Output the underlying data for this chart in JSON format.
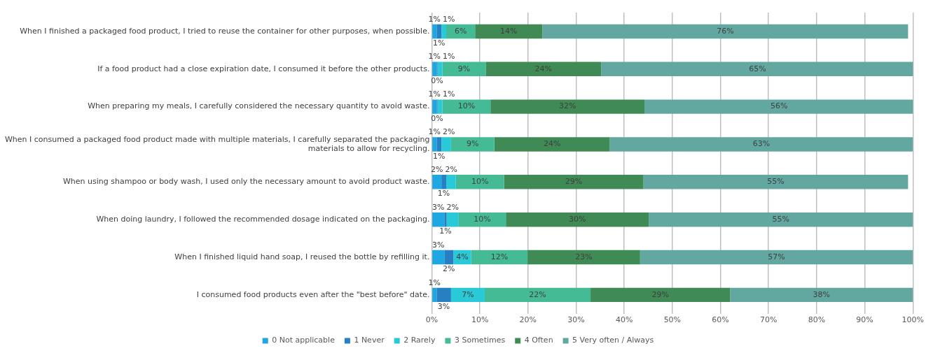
{
  "chart_data": {
    "type": "bar",
    "orientation": "horizontal",
    "stacked": true,
    "categories": [
      "When I finished a packaged food product, I tried to reuse the container for other purposes, when possible.",
      "If a food product had a close expiration date, I consumed it before the other products.",
      "When preparing my meals, I carefully considered the necessary quantity to avoid waste.",
      "When I consumed a packaged food product made with multiple materials, I carefully separated the packaging materials to allow for recycling.",
      "When using shampoo or body wash, I used only the necessary amount to avoid product waste.",
      "When doing laundry, I followed the recommended dosage indicated on the packaging.",
      "When I finished liquid hand soap, I reused the bottle by refilling it.",
      "I consumed food products even after the \"best before\" date."
    ],
    "series": [
      {
        "name": "0 Not applicable",
        "color": "#1ea7e0",
        "values": [
          1,
          1,
          1,
          1,
          2,
          2.6,
          2.6,
          1
        ],
        "value_labels": [
          "1%",
          "1%",
          "1%",
          "1%",
          "2%",
          "3%",
          "3%",
          "1%"
        ]
      },
      {
        "name": "1 Never",
        "color": "#2680c2",
        "values": [
          1,
          0.2,
          0.2,
          1,
          1,
          0.5,
          1.9,
          3
        ],
        "value_labels": [
          "1%",
          "0%",
          "0%",
          "1%",
          "1%",
          "1%",
          "2%",
          "3%"
        ]
      },
      {
        "name": "2 Rarely",
        "color": "#2ac9d8",
        "values": [
          1,
          1,
          1,
          2,
          2,
          2.5,
          3.7,
          7
        ],
        "value_labels": [
          "1%",
          "1%",
          "1%",
          "2%",
          "2%",
          "2%",
          "4%",
          "7%"
        ]
      },
      {
        "name": "3 Sometimes",
        "color": "#45bb95",
        "values": [
          6,
          9,
          10,
          9,
          10,
          9.8,
          11.7,
          22
        ],
        "value_labels": [
          "6%",
          "9%",
          "10%",
          "9%",
          "10%",
          "10%",
          "12%",
          "22%"
        ]
      },
      {
        "name": "4 Often",
        "color": "#3f8a55",
        "values": [
          14,
          24,
          32,
          24,
          29,
          29.7,
          23.4,
          29
        ],
        "value_labels": [
          "14%",
          "24%",
          "32%",
          "24%",
          "29%",
          "30%",
          "23%",
          "29%"
        ]
      },
      {
        "name": "5 Very often / Always",
        "color": "#63a8a0",
        "values": [
          76,
          65,
          56,
          63,
          55,
          54.9,
          56.7,
          38
        ],
        "value_labels": [
          "76%",
          "65%",
          "56%",
          "63%",
          "55%",
          "55%",
          "57%",
          "38%"
        ]
      }
    ],
    "xlim": [
      0,
      100
    ],
    "xticks": [
      {
        "value": 0,
        "label": "0%"
      },
      {
        "value": 10,
        "label": "10%"
      },
      {
        "value": 20,
        "label": "20%"
      },
      {
        "value": 30,
        "label": "30%"
      },
      {
        "value": 40,
        "label": "40%"
      },
      {
        "value": 50,
        "label": "50%"
      },
      {
        "value": 60,
        "label": "60%"
      },
      {
        "value": 70,
        "label": "70%"
      },
      {
        "value": 80,
        "label": "80%"
      },
      {
        "value": 90,
        "label": "90%"
      },
      {
        "value": 100,
        "label": "100%"
      }
    ],
    "grid": "x",
    "legend": "bottom"
  }
}
